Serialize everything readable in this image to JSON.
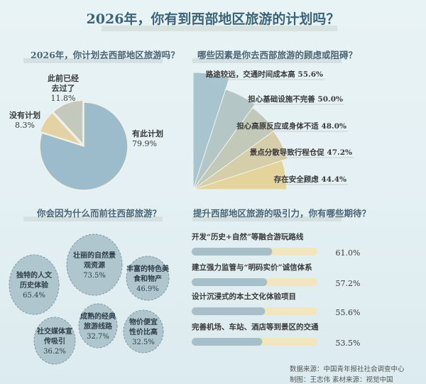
{
  "title": "2026年，你有到西部地区旅游的计划吗？",
  "chart_data": [
    {
      "type": "pie",
      "title": "2026年，你计划去西部地区旅游吗？",
      "slices": [
        {
          "label": "有此计划",
          "value": 79.9,
          "display": "79.9%",
          "color": "#9dbccb"
        },
        {
          "label": "没有计划",
          "value": 8.3,
          "display": "8.3%",
          "color": "#e3d2a4"
        },
        {
          "label": "此前已经去过了",
          "value": 11.8,
          "display": "11.8%",
          "color": "#c4c9bd"
        }
      ]
    },
    {
      "type": "bar",
      "subtype": "radial-fan",
      "title": "哪些因素是你去西部旅游的顾虑或阻碍？",
      "categories": [
        "路途较远，交通时间成本高",
        "担心基础设施不完善",
        "担心高原反应或身体不适",
        "景点分散导致行程仓促",
        "存在安全顾虑"
      ],
      "values": [
        55.6,
        50.0,
        48.0,
        47.2,
        44.4
      ],
      "display": [
        "55.6%",
        "50.0%",
        "48.0%",
        "47.2%",
        "44.4%"
      ],
      "colors": [
        "#a8c4ce",
        "#b4c6c6",
        "#c3c9b9",
        "#d6cda9",
        "#e5d39c"
      ]
    },
    {
      "type": "bubble",
      "title": "你会因为什么而前往西部旅游？",
      "items": [
        {
          "label": "独特的人文历史体验",
          "lines": [
            "独特的人文",
            "历史体验"
          ],
          "value": 65.4,
          "display": "65.4%"
        },
        {
          "label": "壮丽的自然景观资源",
          "lines": [
            "壮丽的自然景",
            "观资源"
          ],
          "value": 73.5,
          "display": "73.5%"
        },
        {
          "label": "丰富的特色美食和物产",
          "lines": [
            "丰富的特色美",
            "食和物产"
          ],
          "value": 46.9,
          "display": "46.9%"
        },
        {
          "label": "社交媒体宣传吸引",
          "lines": [
            "社交媒体宣",
            "传吸引"
          ],
          "value": 36.2,
          "display": "36.2%"
        },
        {
          "label": "成熟的经典旅游线路",
          "lines": [
            "成熟的经典",
            "旅游线路"
          ],
          "value": 32.7,
          "display": "32.7%"
        },
        {
          "label": "物价便宜性价比高",
          "lines": [
            "物价便宜",
            "性价比高"
          ],
          "value": 32.5,
          "display": "32.5%"
        }
      ]
    },
    {
      "type": "bar",
      "orientation": "horizontal",
      "title": "提升西部地区旅游的吸引力，你有哪些期待？",
      "categories": [
        "开发“历史+自然”等融合游玩路线",
        "建立强力监管与“明码实价”诚信体系",
        "设计沉浸式的本土文化体验项目",
        "完善机场、车站、酒店等到景区的交通"
      ],
      "values": [
        61.0,
        57.2,
        55.6,
        53.5
      ],
      "display": [
        "61.0%",
        "57.2%",
        "55.6%",
        "53.5%"
      ],
      "colors": {
        "fill": "#a7bfc9",
        "track": "#f3e6bf"
      }
    }
  ],
  "footer": {
    "source": "数据来源：中国青年报社社会调查中心",
    "credit": "制图：王志伟    素材来源：视觉中国"
  }
}
